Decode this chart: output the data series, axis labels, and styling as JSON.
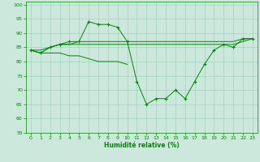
{
  "xlabel": "Humidité relative (%)",
  "xlim": [
    -0.5,
    23.5
  ],
  "ylim": [
    55,
    101
  ],
  "yticks": [
    55,
    60,
    65,
    70,
    75,
    80,
    85,
    90,
    95,
    100
  ],
  "xticks": [
    0,
    1,
    2,
    3,
    4,
    5,
    6,
    7,
    8,
    9,
    10,
    11,
    12,
    13,
    14,
    15,
    16,
    17,
    18,
    19,
    20,
    21,
    22,
    23
  ],
  "bg_color": "#cce8dc",
  "grid_color": "#99ccbb",
  "line_color": "#008800",
  "line1_y": [
    84,
    83,
    85,
    86,
    86,
    87,
    87,
    87,
    87,
    87,
    87,
    87,
    87,
    87,
    87,
    87,
    87,
    87,
    87,
    87,
    87,
    87,
    88,
    88
  ],
  "line2_y": [
    84,
    83,
    85,
    86,
    87,
    87,
    94,
    93,
    93,
    92,
    87,
    73,
    65,
    67,
    67,
    70,
    67,
    73,
    79,
    84,
    86,
    85,
    88,
    88
  ],
  "line3_y": [
    84,
    84,
    85,
    86,
    86,
    86,
    86,
    86,
    86,
    86,
    86,
    86,
    86,
    86,
    86,
    86,
    86,
    86,
    86,
    86,
    86,
    86,
    87,
    88
  ],
  "line4_y": [
    84,
    83,
    83,
    83,
    82,
    82,
    81,
    80,
    80,
    80,
    79,
    null,
    null,
    null,
    null,
    null,
    null,
    null,
    null,
    null,
    null,
    null,
    null,
    null
  ]
}
